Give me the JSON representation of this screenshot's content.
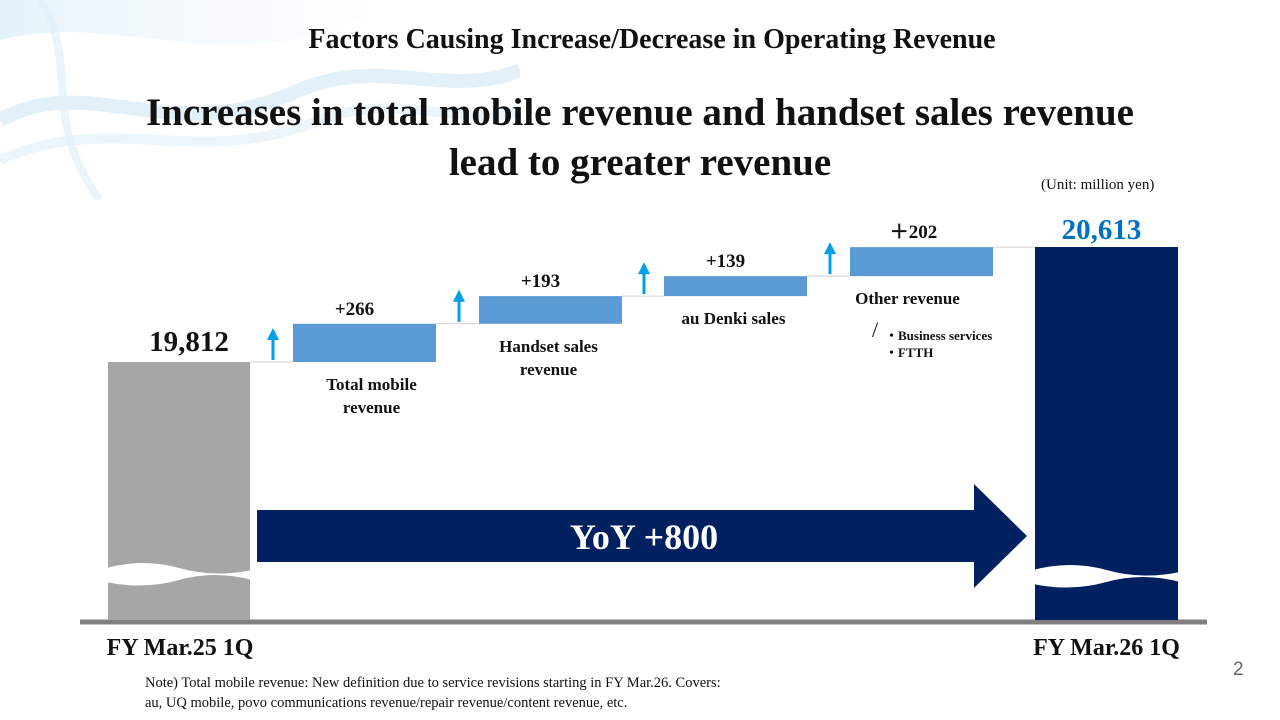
{
  "header": {
    "section_title": "Factors Causing Increase/Decrease in Operating Revenue",
    "headline_line1": "Increases in total mobile revenue and handset sales revenue",
    "headline_line2": "lead to greater revenue",
    "unit": "(Unit: million yen)",
    "page_number": "2"
  },
  "note": {
    "line1": "Note) Total mobile revenue: New definition due to service revisions starting in FY Mar.26. Covers:",
    "line2": "au, UQ mobile, povo communications revenue/repair revenue/content revenue, etc."
  },
  "colors": {
    "start_bar": "#a6a6a6",
    "end_bar": "#002060",
    "step_bar": "#5b9bd5",
    "up_arrow": "#00a0e9",
    "yoy_arrow": "#002060",
    "end_value_text": "#0070c0",
    "baseline": "#808080"
  },
  "chart_data": {
    "type": "waterfall",
    "start": {
      "label": "FY Mar.25 1Q",
      "value": 19812,
      "value_label": "19,812"
    },
    "steps": [
      {
        "name_lines": [
          "Total mobile",
          "revenue"
        ],
        "delta": 266,
        "delta_label": "+266"
      },
      {
        "name_lines": [
          "Handset sales",
          "revenue"
        ],
        "delta": 193,
        "delta_label": "+193"
      },
      {
        "name_lines": [
          "au Denki sales"
        ],
        "delta": 139,
        "delta_label": "+139"
      },
      {
        "name_lines": [
          "Other revenue"
        ],
        "delta": 202,
        "delta_label": "＋202",
        "detail_mark": "/",
        "details": [
          "・Business services",
          "・FTTH"
        ]
      }
    ],
    "end": {
      "label": "FY Mar.26 1Q",
      "value": 20613,
      "value_label": "20,613"
    },
    "yoy_label": "YoY +800",
    "axis_broken": true
  }
}
